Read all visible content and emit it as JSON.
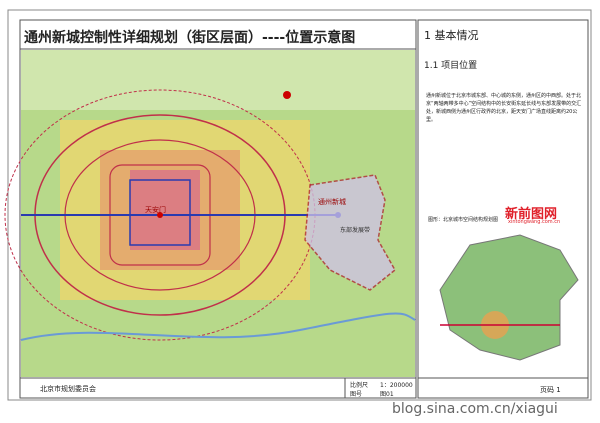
{
  "header": {
    "title": "通州新城控制性详细规划（街区层面）----位置示意图"
  },
  "map": {
    "labels": [
      "天安门",
      "通州新城",
      "东部发展带"
    ]
  },
  "footer": {
    "organization": "北京市规划委员会",
    "scale_label": "比例尺",
    "scale_value": "1：200000",
    "figure_label": "图号",
    "figure_value": "图01"
  },
  "side": {
    "heading": "1  基本情况",
    "subheading": "1.1  项目位置",
    "paragraph": "通州新城位于北京市城东部、中心城的东侧，通州区的中西部。处于北京“两轴两带多中心”空间结构中的长安街东延长线与东部发展带的交汇处，新城西侧为通州区行政界的北京，距天安门广场直线距离约20公里。",
    "figure_caption": "图形：北京城市空间结构规划图",
    "logo": "新前图网",
    "logo_url": "xintongwang.com.cn",
    "page": "页码 1"
  },
  "watermark": "blog.sina.com.cn/xiagui"
}
